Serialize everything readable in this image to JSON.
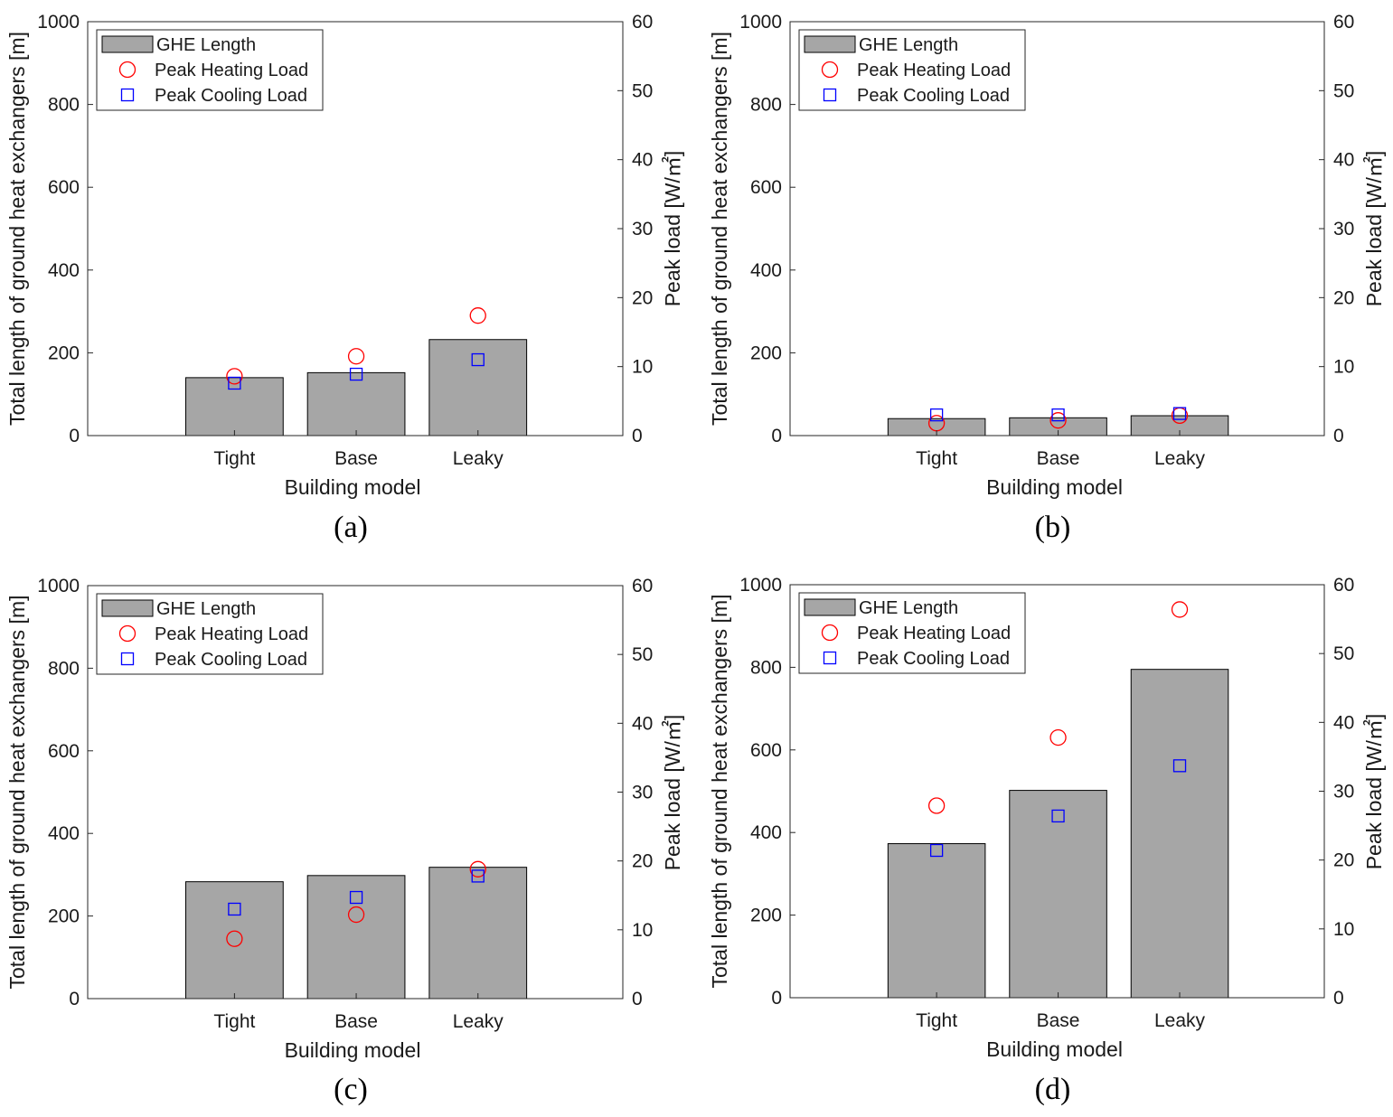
{
  "chart_data": [
    {
      "type": "bar",
      "panel_label": "(a)",
      "categories": [
        "Tight",
        "Base",
        "Leaky"
      ],
      "xlabel": "Building model",
      "ylabel": "Total length of ground heat exchangers [m]",
      "y2label": "Peak load [W/㎡]",
      "ylim": [
        0,
        1000
      ],
      "y2lim": [
        0,
        60
      ],
      "yticks": [
        "0",
        "200",
        "400",
        "600",
        "800",
        "1000"
      ],
      "y2ticks": [
        "0",
        "10",
        "20",
        "30",
        "40",
        "50",
        "60"
      ],
      "legend_position": "top-left",
      "series": [
        {
          "name": "GHE Length",
          "type": "bar",
          "axis": "left",
          "color": "#a6a6a6",
          "values": [
            140,
            152,
            232
          ]
        },
        {
          "name": "Peak Heating Load",
          "type": "marker-circle",
          "axis": "right",
          "color": "#ff0000",
          "values": [
            8.6,
            11.5,
            17.4
          ]
        },
        {
          "name": "Peak Cooling Load",
          "type": "marker-square",
          "axis": "right",
          "color": "#0000ff",
          "values": [
            7.6,
            8.9,
            11.0
          ]
        }
      ]
    },
    {
      "type": "bar",
      "panel_label": "(b)",
      "categories": [
        "Tight",
        "Base",
        "Leaky"
      ],
      "xlabel": "Building model",
      "ylabel": "Total length of ground heat exchangers [m]",
      "y2label": "Peak load [W/㎡]",
      "ylim": [
        0,
        1000
      ],
      "y2lim": [
        0,
        60
      ],
      "yticks": [
        "0",
        "200",
        "400",
        "600",
        "800",
        "1000"
      ],
      "y2ticks": [
        "0",
        "10",
        "20",
        "30",
        "40",
        "50",
        "60"
      ],
      "legend_position": "top-left",
      "series": [
        {
          "name": "GHE Length",
          "type": "bar",
          "axis": "left",
          "color": "#a6a6a6",
          "values": [
            41,
            43,
            48
          ]
        },
        {
          "name": "Peak Heating Load",
          "type": "marker-circle",
          "axis": "right",
          "color": "#ff0000",
          "values": [
            1.8,
            2.2,
            2.9
          ]
        },
        {
          "name": "Peak Cooling Load",
          "type": "marker-square",
          "axis": "right",
          "color": "#0000ff",
          "values": [
            3.0,
            3.0,
            3.2
          ]
        }
      ]
    },
    {
      "type": "bar",
      "panel_label": "(c)",
      "categories": [
        "Tight",
        "Base",
        "Leaky"
      ],
      "xlabel": "Building model",
      "ylabel": "Total length of ground heat exchangers [m]",
      "y2label": "Peak load [W/㎡]",
      "ylim": [
        0,
        1000
      ],
      "y2lim": [
        0,
        60
      ],
      "yticks": [
        "0",
        "200",
        "400",
        "600",
        "800",
        "1000"
      ],
      "y2ticks": [
        "0",
        "10",
        "20",
        "30",
        "40",
        "50",
        "60"
      ],
      "legend_position": "top-left",
      "series": [
        {
          "name": "GHE Length",
          "type": "bar",
          "axis": "left",
          "color": "#a6a6a6",
          "values": [
            283,
            298,
            318
          ]
        },
        {
          "name": "Peak Heating Load",
          "type": "marker-circle",
          "axis": "right",
          "color": "#ff0000",
          "values": [
            8.7,
            12.2,
            18.8
          ]
        },
        {
          "name": "Peak Cooling Load",
          "type": "marker-square",
          "axis": "right",
          "color": "#0000ff",
          "values": [
            13.0,
            14.7,
            17.8
          ]
        }
      ]
    },
    {
      "type": "bar",
      "panel_label": "(d)",
      "categories": [
        "Tight",
        "Base",
        "Leaky"
      ],
      "xlabel": "Building model",
      "ylabel": "Total length of ground heat exchangers [m]",
      "y2label": "Peak load [W/㎡]",
      "ylim": [
        0,
        1000
      ],
      "y2lim": [
        0,
        60
      ],
      "yticks": [
        "0",
        "200",
        "400",
        "600",
        "800",
        "1000"
      ],
      "y2ticks": [
        "0",
        "10",
        "20",
        "30",
        "40",
        "50",
        "60"
      ],
      "legend_position": "top-left",
      "series": [
        {
          "name": "GHE Length",
          "type": "bar",
          "axis": "left",
          "color": "#a6a6a6",
          "values": [
            373,
            502,
            795
          ]
        },
        {
          "name": "Peak Heating Load",
          "type": "marker-circle",
          "axis": "right",
          "color": "#ff0000",
          "values": [
            27.9,
            37.8,
            56.4
          ]
        },
        {
          "name": "Peak Cooling Load",
          "type": "marker-square",
          "axis": "right",
          "color": "#0000ff",
          "values": [
            21.4,
            26.4,
            33.7
          ]
        }
      ]
    }
  ]
}
